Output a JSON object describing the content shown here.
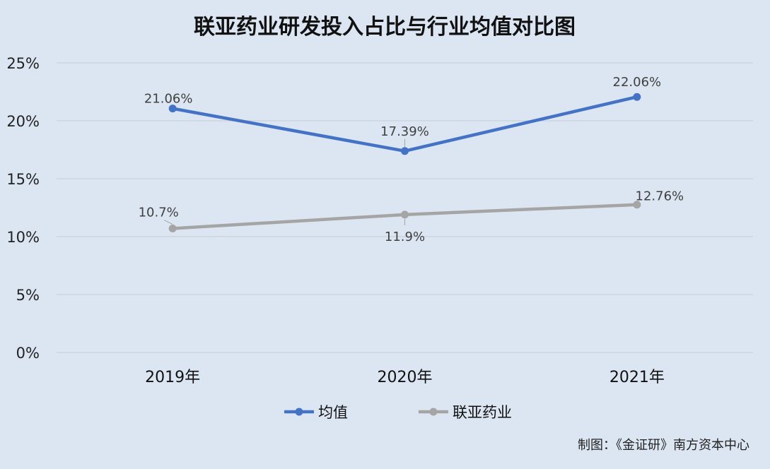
{
  "chart_data": {
    "type": "line",
    "title": "联亚药业研发投入占比与行业均值对比图",
    "categories": [
      "2019年",
      "2020年",
      "2021年"
    ],
    "series": [
      {
        "name": "均值",
        "values": [
          21.06,
          17.39,
          22.06
        ],
        "labels": [
          "21.06%",
          "17.39%",
          "22.06%"
        ],
        "color": "#4472c4"
      },
      {
        "name": "联亚药业",
        "values": [
          10.7,
          11.9,
          12.76
        ],
        "labels": [
          "10.7%",
          "11.9%",
          "12.76%"
        ],
        "color": "#a5a5a5"
      }
    ],
    "ylim": [
      0,
      25
    ],
    "yticks": [
      0,
      5,
      10,
      15,
      20,
      25
    ],
    "ytick_labels": [
      "0%",
      "5%",
      "10%",
      "15%",
      "20%",
      "25%"
    ],
    "grid": true,
    "legend": "bottom-center",
    "source": "制图：《金证研》南方资本中心"
  }
}
